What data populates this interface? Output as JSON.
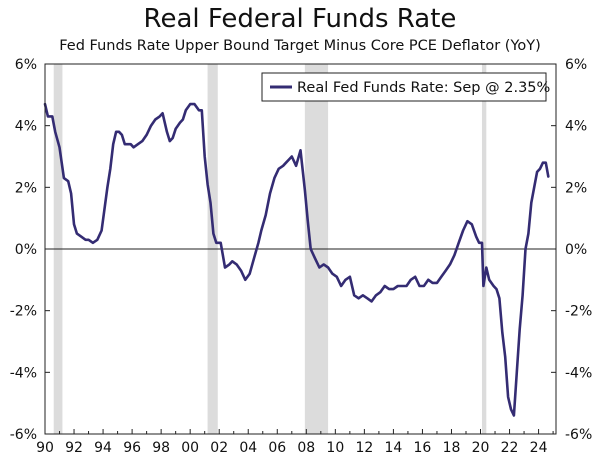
{
  "chart_data": {
    "type": "line",
    "title": "Real Federal Funds Rate",
    "subtitle": "Fed Funds Rate Upper Bound Target Minus Core PCE Deflator (YoY)",
    "xlabel": "",
    "ylabel": "",
    "xlim": [
      1990,
      2025.2
    ],
    "ylim": [
      -6,
      6
    ],
    "grid": false,
    "legend_position": "top-right",
    "x_tick_labels": [
      "90",
      "92",
      "94",
      "96",
      "98",
      "00",
      "02",
      "04",
      "06",
      "08",
      "10",
      "12",
      "14",
      "16",
      "18",
      "20",
      "22",
      "24"
    ],
    "x_tick_values": [
      1990,
      1992,
      1994,
      1996,
      1998,
      2000,
      2002,
      2004,
      2006,
      2008,
      2010,
      2012,
      2014,
      2016,
      2018,
      2020,
      2022,
      2024
    ],
    "y_tick_values": [
      6,
      4,
      2,
      0,
      -2,
      -4,
      -6
    ],
    "y_tick_labels_left": [
      "6%",
      "4%",
      "2%",
      "0%",
      "-2%",
      "-4%",
      "-6%"
    ],
    "y_tick_labels_right": [
      "6%",
      "4%",
      "2%",
      "0%",
      "-2%",
      "-4%",
      "-6%"
    ],
    "recessions": [
      [
        1990.6,
        1991.2
      ],
      [
        2001.2,
        2001.9
      ],
      [
        2007.9,
        2009.5
      ],
      [
        2020.1,
        2020.4
      ]
    ],
    "colors": {
      "line": "#342c73",
      "recession": "#dcdcdc",
      "zero_line": "#222222"
    },
    "series": [
      {
        "name": "Real Fed Funds Rate: Sep @ 2.35%",
        "x": [
          1990,
          1990.2,
          1990.5,
          1990.7,
          1991.0,
          1991.3,
          1991.6,
          1991.8,
          1992.0,
          1992.2,
          1992.5,
          1992.8,
          1993.0,
          1993.3,
          1993.6,
          1993.9,
          1994.1,
          1994.3,
          1994.5,
          1994.7,
          1994.9,
          1995.1,
          1995.3,
          1995.5,
          1995.7,
          1995.9,
          1996.1,
          1996.4,
          1996.7,
          1997.0,
          1997.3,
          1997.6,
          1997.9,
          1998.1,
          1998.4,
          1998.6,
          1998.8,
          1999.0,
          1999.3,
          1999.5,
          1999.7,
          2000.0,
          2000.3,
          2000.6,
          2000.8,
          2001.0,
          2001.2,
          2001.4,
          2001.6,
          2001.8,
          2001.9,
          2002.1,
          2002.4,
          2002.7,
          2002.9,
          2003.2,
          2003.5,
          2003.8,
          2004.1,
          2004.4,
          2004.7,
          2004.9,
          2005.2,
          2005.5,
          2005.8,
          2006.1,
          2006.4,
          2006.6,
          2006.8,
          2007.0,
          2007.3,
          2007.6,
          2007.9,
          2008.1,
          2008.3,
          2008.6,
          2008.9,
          2009.2,
          2009.5,
          2009.8,
          2010.1,
          2010.4,
          2010.7,
          2011.0,
          2011.3,
          2011.6,
          2011.9,
          2012.2,
          2012.5,
          2012.8,
          2013.1,
          2013.4,
          2013.7,
          2014.0,
          2014.3,
          2014.6,
          2014.9,
          2015.2,
          2015.5,
          2015.8,
          2016.1,
          2016.4,
          2016.7,
          2017.0,
          2017.3,
          2017.6,
          2017.9,
          2018.2,
          2018.5,
          2018.8,
          2019.1,
          2019.4,
          2019.7,
          2019.9,
          2020.1,
          2020.2,
          2020.4,
          2020.6,
          2020.9,
          2021.1,
          2021.3,
          2021.5,
          2021.7,
          2021.9,
          2022.1,
          2022.3,
          2022.5,
          2022.7,
          2022.9,
          2023.1,
          2023.3,
          2023.5,
          2023.7,
          2023.9,
          2024.1,
          2024.3,
          2024.5,
          2024.67
        ],
        "values": [
          4.7,
          4.3,
          4.3,
          3.8,
          3.3,
          2.3,
          2.2,
          1.8,
          0.8,
          0.5,
          0.4,
          0.3,
          0.3,
          0.2,
          0.3,
          0.6,
          1.3,
          2.0,
          2.6,
          3.4,
          3.8,
          3.8,
          3.7,
          3.4,
          3.4,
          3.4,
          3.3,
          3.4,
          3.5,
          3.7,
          4.0,
          4.2,
          4.3,
          4.4,
          3.8,
          3.5,
          3.6,
          3.9,
          4.1,
          4.2,
          4.5,
          4.7,
          4.7,
          4.5,
          4.5,
          3.0,
          2.1,
          1.5,
          0.5,
          0.2,
          0.2,
          0.2,
          -0.6,
          -0.5,
          -0.4,
          -0.5,
          -0.7,
          -1.0,
          -0.8,
          -0.3,
          0.2,
          0.6,
          1.1,
          1.8,
          2.3,
          2.6,
          2.7,
          2.8,
          2.9,
          3.0,
          2.7,
          3.2,
          1.9,
          0.9,
          0.0,
          -0.3,
          -0.6,
          -0.5,
          -0.6,
          -0.8,
          -0.9,
          -1.2,
          -1.0,
          -0.9,
          -1.5,
          -1.6,
          -1.5,
          -1.6,
          -1.7,
          -1.5,
          -1.4,
          -1.2,
          -1.3,
          -1.3,
          -1.2,
          -1.2,
          -1.2,
          -1.0,
          -0.9,
          -1.2,
          -1.2,
          -1.0,
          -1.1,
          -1.1,
          -0.9,
          -0.7,
          -0.5,
          -0.2,
          0.2,
          0.6,
          0.9,
          0.8,
          0.4,
          0.2,
          0.2,
          -1.2,
          -0.6,
          -1.0,
          -1.2,
          -1.3,
          -1.6,
          -2.7,
          -3.5,
          -4.8,
          -5.2,
          -5.4,
          -4.0,
          -2.6,
          -1.5,
          0.0,
          0.5,
          1.5,
          2.0,
          2.5,
          2.6,
          2.8,
          2.8,
          2.35
        ]
      }
    ]
  }
}
